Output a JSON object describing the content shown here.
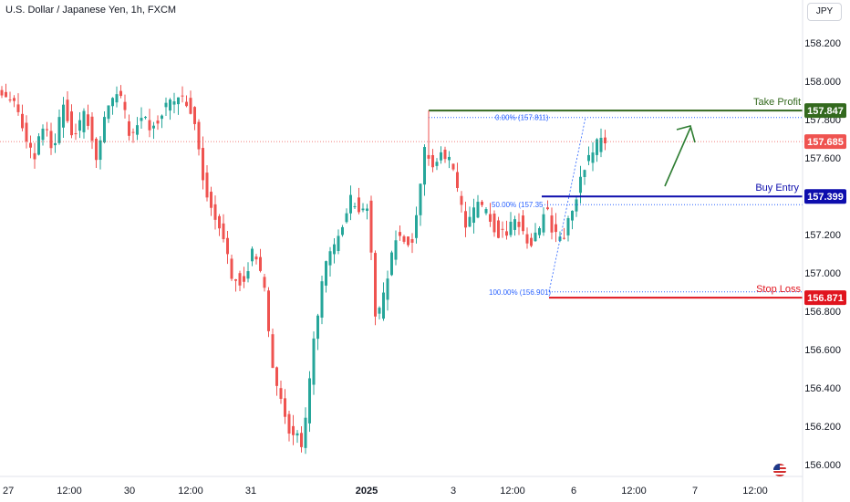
{
  "header": {
    "title": "U.S. Dollar / Japanese Yen, 1h, FXCM",
    "currency": "JPY"
  },
  "colors": {
    "up": "#26a69a",
    "down": "#ef5350",
    "take_profit": "#33691e",
    "buy_entry": "#0d0dad",
    "stop_loss": "#e0141e",
    "fib": "#2962ff",
    "price_line": "#ef5350",
    "arrow": "#2e7d32"
  },
  "chart_data": {
    "type": "candlestick",
    "symbol": "U.S. Dollar / Japanese Yen, 1h, FXCM",
    "ylim": [
      155.98,
      158.32
    ],
    "y_ticks": [
      "158.200",
      "158.000",
      "157.800",
      "157.600",
      "157.400",
      "157.200",
      "157.000",
      "156.800",
      "156.600",
      "156.400",
      "156.200",
      "156.000"
    ],
    "x_ticks": [
      "27",
      "12:00",
      "30",
      "12:00",
      "31",
      "2025",
      "3",
      "12:00",
      "6",
      "12:00",
      "7",
      "12:00"
    ],
    "x_bold": [
      "2025"
    ],
    "last_price": "157.685",
    "levels": {
      "take_profit": {
        "label": "Take Profit",
        "price": "157.847"
      },
      "buy_entry": {
        "label": "Buy Entry",
        "price": "157.399"
      },
      "stop_loss": {
        "label": "Stop Loss",
        "price": "156.871"
      }
    },
    "fib_labels": {
      "fib0": "0.00% (157.811)",
      "fib50": "50.00% (157.35",
      "fib100": "100.00% (156.901)"
    },
    "price_keys": [
      [
        0,
        157.96
      ],
      [
        12,
        157.9
      ],
      [
        20,
        157.82
      ],
      [
        34,
        157.58
      ],
      [
        44,
        157.78
      ],
      [
        56,
        157.66
      ],
      [
        68,
        157.88
      ],
      [
        80,
        157.7
      ],
      [
        92,
        157.84
      ],
      [
        104,
        157.6
      ],
      [
        116,
        157.86
      ],
      [
        128,
        157.96
      ],
      [
        140,
        157.72
      ],
      [
        152,
        157.82
      ],
      [
        164,
        157.76
      ],
      [
        180,
        157.86
      ],
      [
        196,
        157.92
      ],
      [
        210,
        157.84
      ],
      [
        222,
        157.46
      ],
      [
        232,
        157.3
      ],
      [
        242,
        157.22
      ],
      [
        252,
        157.0
      ],
      [
        264,
        156.95
      ],
      [
        276,
        157.12
      ],
      [
        288,
        156.92
      ],
      [
        296,
        156.52
      ],
      [
        304,
        156.34
      ],
      [
        316,
        156.18
      ],
      [
        330,
        156.1
      ],
      [
        340,
        156.55
      ],
      [
        352,
        157.0
      ],
      [
        362,
        157.1
      ],
      [
        372,
        157.22
      ],
      [
        382,
        157.38
      ],
      [
        394,
        157.34
      ],
      [
        402,
        157.36
      ],
      [
        410,
        156.72
      ],
      [
        420,
        156.9
      ],
      [
        432,
        157.18
      ],
      [
        440,
        157.2
      ],
      [
        448,
        157.12
      ],
      [
        456,
        157.3
      ],
      [
        464,
        157.66
      ],
      [
        472,
        157.56
      ],
      [
        482,
        157.62
      ],
      [
        492,
        157.58
      ],
      [
        502,
        157.38
      ],
      [
        510,
        157.22
      ],
      [
        520,
        157.35
      ],
      [
        534,
        157.3
      ],
      [
        546,
        157.18
      ],
      [
        556,
        157.22
      ],
      [
        566,
        157.28
      ],
      [
        578,
        157.14
      ],
      [
        590,
        157.25
      ],
      [
        596,
        157.36
      ],
      [
        604,
        157.2
      ],
      [
        612,
        157.16
      ],
      [
        620,
        157.24
      ],
      [
        628,
        157.36
      ],
      [
        636,
        157.5
      ],
      [
        642,
        157.6
      ],
      [
        650,
        157.64
      ],
      [
        656,
        157.7
      ],
      [
        662,
        157.685
      ]
    ]
  }
}
